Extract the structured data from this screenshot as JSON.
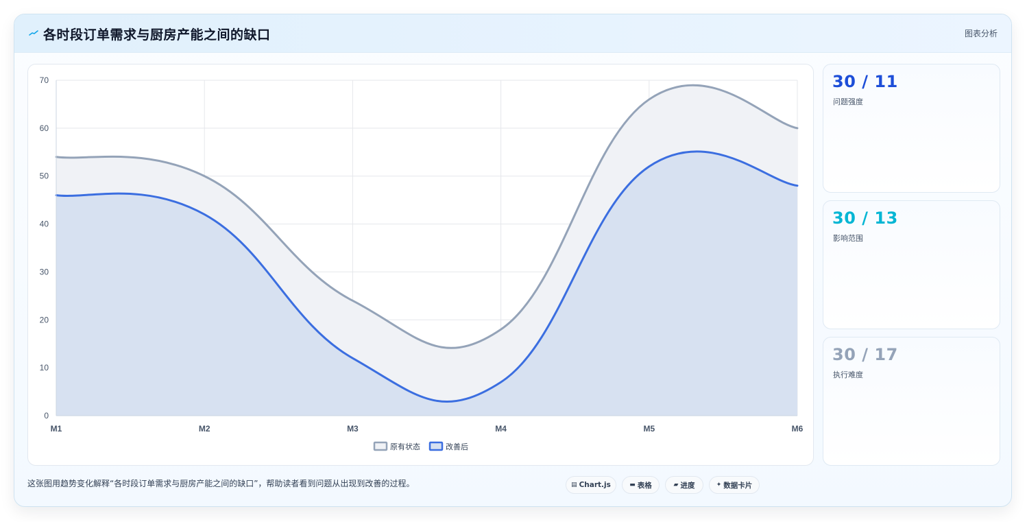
{
  "header": {
    "title": "各时段订单需求与厨房产能之间的缺口",
    "tag": "图表分析"
  },
  "chart_data": {
    "type": "area",
    "categories": [
      "M1",
      "M2",
      "M3",
      "M4",
      "M5",
      "M6"
    ],
    "series": [
      {
        "name": "原有状态",
        "values": [
          54,
          50,
          24,
          18,
          66,
          60
        ],
        "color": "#94a3b8",
        "fill": "#f0f2f6"
      },
      {
        "name": "改善后",
        "values": [
          46,
          42,
          12,
          7,
          52,
          48
        ],
        "color": "#3b6ee0",
        "fill": "#d7e1f1"
      }
    ],
    "ylim": [
      0,
      70
    ],
    "yticks": [
      0,
      10,
      20,
      30,
      40,
      50,
      60,
      70
    ],
    "grid": true,
    "legend": "bottom-center",
    "smooth": true
  },
  "stats": [
    {
      "value": "30 / 11",
      "label": "问题强度",
      "color": "#1d4ed8"
    },
    {
      "value": "30 / 13",
      "label": "影响范围",
      "color": "#06b6d4"
    },
    {
      "value": "30 / 17",
      "label": "执行难度",
      "color": "#94a3b8"
    }
  ],
  "footnote": "这张图用趋势变化解释“各时段订单需求与厨房产能之间的缺口”，帮助读者看到问题从出现到改善的过程。",
  "chips": [
    {
      "icon": "chart-icon",
      "glyph": "▤",
      "label": "Chart.js"
    },
    {
      "icon": "table-icon",
      "glyph": "▬",
      "label": "表格"
    },
    {
      "icon": "progress-icon",
      "glyph": "▰",
      "label": "进度"
    },
    {
      "icon": "sparkle-icon",
      "glyph": "✦",
      "label": "数据卡片"
    }
  ]
}
